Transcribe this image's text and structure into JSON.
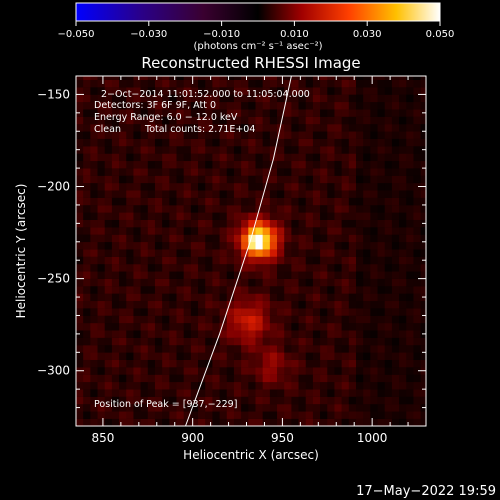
{
  "chart_data": {
    "type": "heatmap",
    "title": "Reconstructed RHESSI Image",
    "xlabel": "Heliocentric X (arcsec)",
    "ylabel": "Heliocentric Y (arcsec)",
    "xlim": [
      835,
      1030
    ],
    "ylim": [
      -330,
      -140
    ],
    "x_ticks": [
      850,
      900,
      950,
      1000
    ],
    "y_ticks": [
      -150,
      -200,
      -250,
      -300
    ],
    "x_tick_labels": [
      "850",
      "900",
      "950",
      "1000"
    ],
    "y_tick_labels": [
      "−150",
      "−200",
      "−250",
      "−300"
    ],
    "colorbar": {
      "range": [
        -0.05,
        0.05
      ],
      "ticks": [
        -0.05,
        -0.03,
        -0.01,
        0.01,
        0.03,
        0.05
      ],
      "tick_labels": [
        "−0.050",
        "−0.030",
        "−0.010",
        "0.010",
        "0.030",
        "0.050"
      ],
      "unit_label": "(photons cm⁻² s⁻¹ asec⁻²)"
    },
    "annotations": [
      "2−Oct−2014 11:01:52.000 to 11:05:04.000",
      "Detectors: 3F 6F 9F, Att 0",
      "Energy Range: 6.0 − 12.0 keV",
      "Clean",
      "Total counts: 2.71E+04"
    ],
    "peak_label": "Position of Peak = [937,−229]",
    "peak": {
      "x": 937,
      "y": -229,
      "value": 0.05
    },
    "sources": [
      {
        "x": 937,
        "y": -229,
        "sigma": 7,
        "value": 0.05
      },
      {
        "x": 931,
        "y": -273,
        "sigma": 8,
        "value": 0.018
      },
      {
        "x": 944,
        "y": -297,
        "sigma": 7,
        "value": 0.01
      }
    ],
    "limb": [
      [
        896,
        -330
      ],
      [
        915,
        -280
      ],
      [
        932,
        -230
      ],
      [
        945,
        -185
      ],
      [
        955,
        -140
      ]
    ],
    "colors": {
      "limb": "#ffffff",
      "background": "#000000",
      "text": "#ffffff"
    }
  },
  "footer": {
    "timestamp": "17−May−2022 19:59"
  }
}
